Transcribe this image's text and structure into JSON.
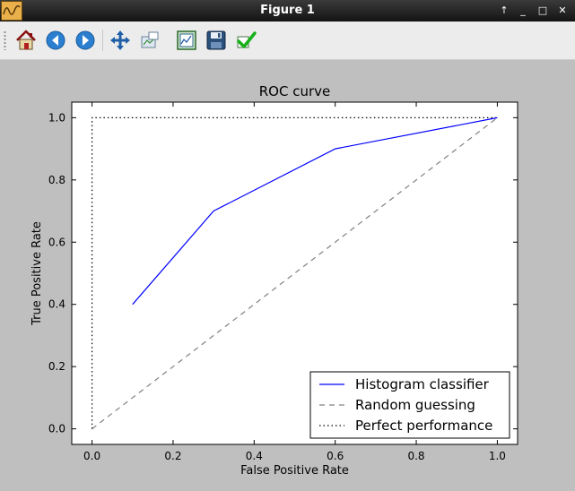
{
  "window": {
    "title": "Figure 1",
    "controls": [
      "↑",
      "_",
      "□",
      "✕"
    ]
  },
  "toolbar": {
    "buttons": [
      {
        "name": "home-button",
        "icon": "home-icon"
      },
      {
        "name": "back-button",
        "icon": "back-arrow-icon"
      },
      {
        "name": "forward-button",
        "icon": "forward-arrow-icon"
      },
      {
        "name": "pan-button",
        "icon": "move-icon"
      },
      {
        "name": "zoom-button",
        "icon": "zoom-rectangle-icon"
      },
      {
        "name": "subplots-button",
        "icon": "configure-subplots-icon"
      },
      {
        "name": "save-button",
        "icon": "floppy-disk-icon"
      },
      {
        "name": "edit-axis-button",
        "icon": "checkmark-icon"
      }
    ]
  },
  "chart_data": {
    "type": "line",
    "title": "ROC curve",
    "xlabel": "False Positive Rate",
    "ylabel": "True Positive Rate",
    "xlim": [
      -0.05,
      1.05
    ],
    "ylim": [
      -0.05,
      1.05
    ],
    "xticks": [
      0.0,
      0.2,
      0.4,
      0.6,
      0.8,
      1.0
    ],
    "yticks": [
      0.0,
      0.2,
      0.4,
      0.6,
      0.8,
      1.0
    ],
    "xtick_labels": [
      "0.0",
      "0.2",
      "0.4",
      "0.6",
      "0.8",
      "1.0"
    ],
    "ytick_labels": [
      "0.0",
      "0.2",
      "0.4",
      "0.6",
      "0.8",
      "1.0"
    ],
    "grid": false,
    "legend_position": "lower-right",
    "series": [
      {
        "name": "Histogram classifier",
        "style": "solid",
        "color": "#0000ff",
        "x": [
          0.1,
          0.3,
          0.6,
          1.0
        ],
        "y": [
          0.4,
          0.7,
          0.9,
          1.0
        ]
      },
      {
        "name": "Random guessing",
        "style": "dashed",
        "color": "#808080",
        "x": [
          0.0,
          1.0
        ],
        "y": [
          0.0,
          1.0
        ]
      },
      {
        "name": "Perfect performance",
        "style": "dotted",
        "color": "#000000",
        "x": [
          0.0,
          0.0,
          1.0
        ],
        "y": [
          0.0,
          1.0,
          1.0
        ]
      }
    ]
  }
}
